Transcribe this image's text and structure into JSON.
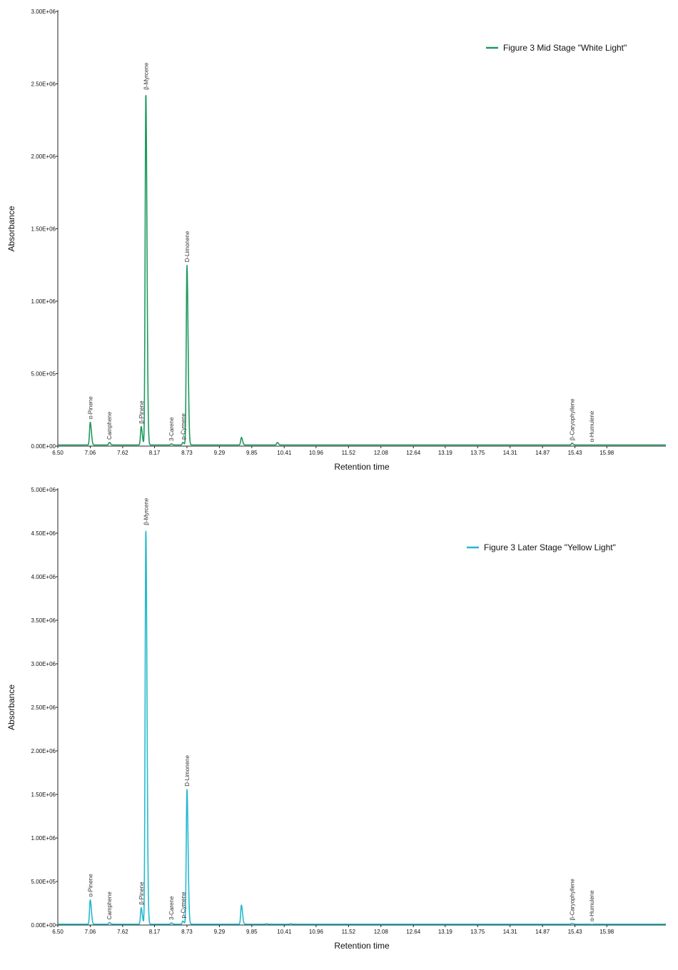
{
  "chart_data": [
    {
      "type": "line",
      "legend": "Figure 3 Mid Stage \"White Light\"",
      "legend_position": "top-right",
      "color": "#1f9a5f",
      "xlabel": "Retention time",
      "ylabel": "Absorbance",
      "xlim": [
        6.5,
        17.0
      ],
      "ylim": [
        0,
        3000000
      ],
      "x_ticks": [
        "6.50",
        "7.06",
        "7.62",
        "8.17",
        "8.73",
        "9.29",
        "9.85",
        "10.41",
        "10.96",
        "11.52",
        "12.08",
        "12.64",
        "13.19",
        "13.75",
        "14.31",
        "14.87",
        "15.43",
        "15.98"
      ],
      "y_ticks": [
        "0.00E+00",
        "5.00E+05",
        "1.00E+06",
        "1.50E+06",
        "2.00E+06",
        "2.50E+06",
        "3.00E+06"
      ],
      "baseline": 8000,
      "peaks": [
        {
          "name": "α-Pinene",
          "x": 7.06,
          "y": 165000
        },
        {
          "name": "Camphene",
          "x": 7.39,
          "y": 25000
        },
        {
          "name": "β-Pinene",
          "x": 7.94,
          "y": 135000
        },
        {
          "name": "β-Myrcene",
          "x": 8.02,
          "y": 2440000
        },
        {
          "name": "3-Carene",
          "x": 8.46,
          "y": 15000
        },
        {
          "name": "p-Cymene",
          "x": 8.66,
          "y": 25000
        },
        {
          "name": "D-Limonene",
          "x": 8.73,
          "y": 1250000
        },
        {
          "name": "",
          "x": 9.67,
          "y": 60000
        },
        {
          "name": "",
          "x": 10.29,
          "y": 25000
        },
        {
          "name": "β-Caryophyllene",
          "x": 15.38,
          "y": 20000
        },
        {
          "name": "α-Humulene",
          "x": 15.72,
          "y": 8000
        }
      ]
    },
    {
      "type": "line",
      "legend": "Figure 3 Later Stage \"Yellow Light\"",
      "legend_position": "top-right",
      "color": "#27b9cc",
      "xlabel": "Retention time",
      "ylabel": "Absorbance",
      "xlim": [
        6.5,
        17.0
      ],
      "ylim": [
        0,
        5000000
      ],
      "x_ticks": [
        "6.50",
        "7.06",
        "7.62",
        "8.17",
        "8.73",
        "9.29",
        "9.85",
        "10.41",
        "10.96",
        "11.52",
        "12.08",
        "12.64",
        "13.19",
        "13.75",
        "14.31",
        "14.87",
        "15.43",
        "15.98"
      ],
      "y_ticks": [
        "0.00E+00",
        "5.00E+05",
        "1.00E+06",
        "1.50E+06",
        "2.00E+06",
        "2.50E+06",
        "3.00E+06",
        "3.50E+06",
        "4.00E+06",
        "4.50E+06",
        "5.00E+06"
      ],
      "baseline": 10000,
      "peaks": [
        {
          "name": "α-Pinene",
          "x": 7.06,
          "y": 290000
        },
        {
          "name": "Camphene",
          "x": 7.39,
          "y": 30000
        },
        {
          "name": "β-Pinene",
          "x": 7.94,
          "y": 200000
        },
        {
          "name": "β-Myrcene",
          "x": 8.02,
          "y": 4560000
        },
        {
          "name": "3-Carene",
          "x": 8.46,
          "y": 25000
        },
        {
          "name": "p-Cymene",
          "x": 8.66,
          "y": 45000
        },
        {
          "name": "D-Limonene",
          "x": 8.73,
          "y": 1560000
        },
        {
          "name": "",
          "x": 9.67,
          "y": 230000
        },
        {
          "name": "",
          "x": 10.1,
          "y": 15000
        },
        {
          "name": "",
          "x": 10.52,
          "y": 15000
        },
        {
          "name": "β-Caryophyllene",
          "x": 15.38,
          "y": 20000
        },
        {
          "name": "α-Humulene",
          "x": 15.72,
          "y": 8000
        }
      ]
    }
  ]
}
